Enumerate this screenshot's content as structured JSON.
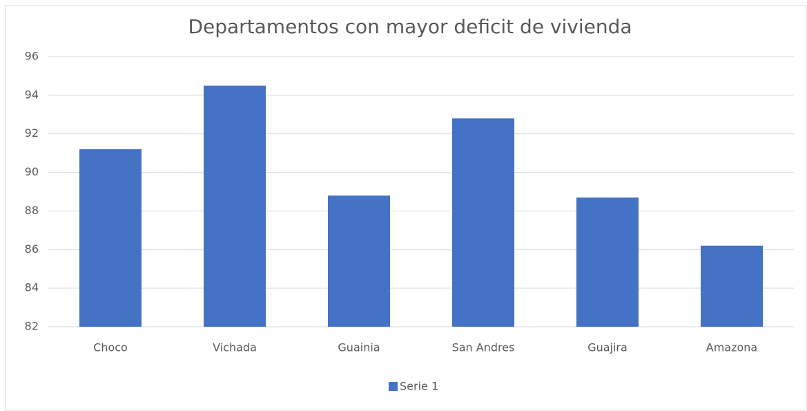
{
  "chart_data": {
    "type": "bar",
    "title": "Departamentos con mayor deficit de vivienda",
    "categories": [
      "Choco",
      "Vichada",
      "Guainia",
      "San Andres",
      "Guajira",
      "Amazona"
    ],
    "series": [
      {
        "name": "Serie 1",
        "color": "#4472c4",
        "values": [
          91.2,
          94.5,
          88.8,
          92.8,
          88.7,
          86.2
        ]
      }
    ],
    "ylim": [
      82,
      96
    ],
    "yticks": [
      82,
      84,
      86,
      88,
      90,
      92,
      94,
      96
    ],
    "grid": true,
    "legend": "bottom"
  }
}
